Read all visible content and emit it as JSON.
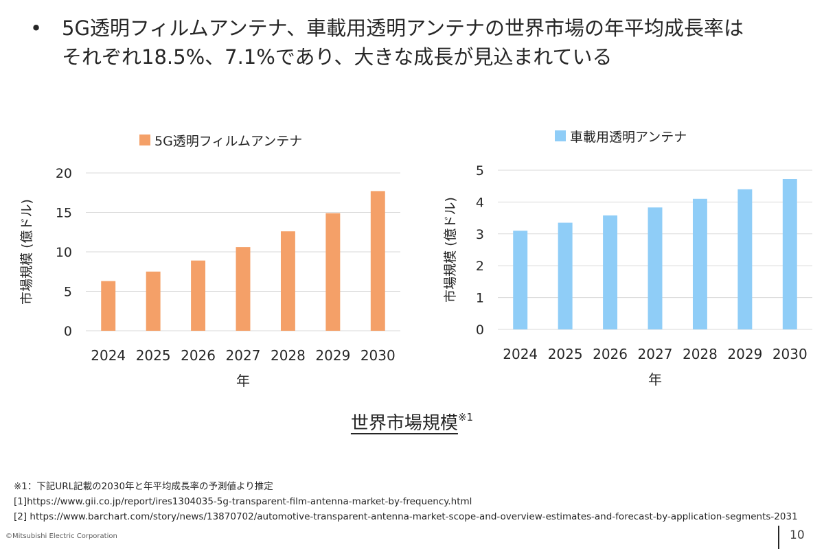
{
  "headline": {
    "bullet": "•",
    "line1": "5G透明フィルムアンテナ、車載用透明アンテナの世界市場の年平均成長率は",
    "line2": "それぞれ18.5%、7.1%であり、大きな成長が見込まれている"
  },
  "chart_data": [
    {
      "type": "bar",
      "title": "",
      "legend": "5G透明フィルムアンテナ",
      "xlabel": "年",
      "ylabel": "市場規模 (億ドル)",
      "categories": [
        "2024",
        "2025",
        "2026",
        "2027",
        "2028",
        "2029",
        "2030"
      ],
      "series": [
        {
          "name": "5G透明フィルムアンテナ",
          "values": [
            6.3,
            7.5,
            8.9,
            10.6,
            12.6,
            14.9,
            17.7
          ]
        }
      ],
      "ylim": [
        0,
        20
      ],
      "yticks": [
        0,
        5,
        10,
        15,
        20
      ],
      "grid": true,
      "legend_position": "top",
      "color": "#F4A068"
    },
    {
      "type": "bar",
      "title": "",
      "legend": "車載用透明アンテナ",
      "xlabel": "年",
      "ylabel": "市場規模 (億ドル)",
      "categories": [
        "2024",
        "2025",
        "2026",
        "2027",
        "2028",
        "2029",
        "2030"
      ],
      "series": [
        {
          "name": "車載用透明アンテナ",
          "values": [
            3.1,
            3.35,
            3.58,
            3.83,
            4.1,
            4.4,
            4.72
          ]
        }
      ],
      "ylim": [
        0,
        5
      ],
      "yticks": [
        0,
        1,
        2,
        3,
        4,
        5
      ],
      "grid": true,
      "legend_position": "top",
      "color": "#8FCDF7"
    }
  ],
  "caption": {
    "text": "世界市場規模",
    "note": "※1"
  },
  "footnotes": {
    "note1": "※1：下記URL記載の2030年と年平均成長率の予測値より推定",
    "ref1": "[1]https://www.gii.co.jp/report/ires1304035-5g-transparent-film-antenna-market-by-frequency.html",
    "ref2": "[2] https://www.barchart.com/story/news/13870702/automotive-transparent-antenna-market-scope-and-overview-estimates-and-forecast-by-application-segments-2031"
  },
  "footer": {
    "copyright": "©Mitsubishi Electric Corporation",
    "page": "10"
  }
}
